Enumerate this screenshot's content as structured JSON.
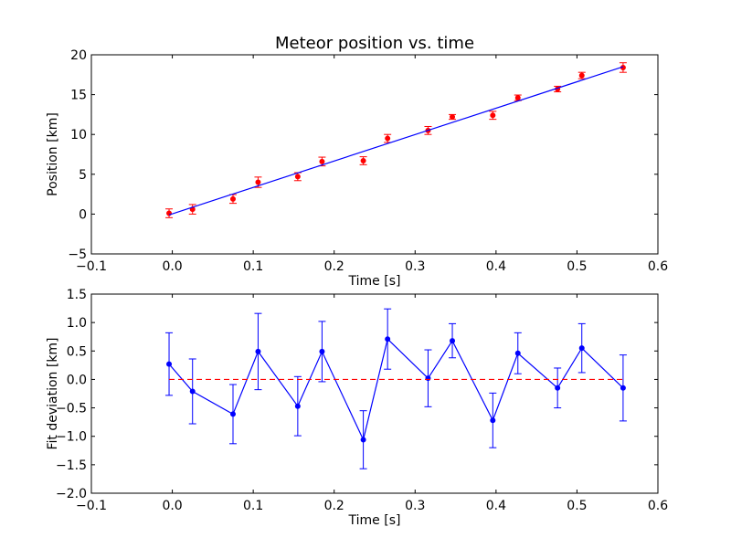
{
  "chart_data": [
    {
      "type": "scatter",
      "title": "Meteor position vs. time",
      "xlabel": "Time [s]",
      "ylabel": "Position [km]",
      "xlim": [
        -0.1,
        0.6
      ],
      "ylim": [
        -5,
        20
      ],
      "xticks": [
        "−0.1",
        "0.0",
        "0.1",
        "0.2",
        "0.3",
        "0.4",
        "0.5",
        "0.6"
      ],
      "yticks": [
        "−5",
        "0",
        "5",
        "10",
        "15",
        "20"
      ],
      "grid": false,
      "series": [
        {
          "style": "points-with-errorbars",
          "color": "#ff0000",
          "x": [
            -0.004,
            0.025,
            0.075,
            0.106,
            0.155,
            0.185,
            0.236,
            0.266,
            0.316,
            0.346,
            0.396,
            0.427,
            0.476,
            0.506,
            0.557
          ],
          "y": [
            0.1,
            0.6,
            1.9,
            4.0,
            4.7,
            6.6,
            6.7,
            9.5,
            10.5,
            12.2,
            12.4,
            14.6,
            15.7,
            17.4,
            18.4
          ],
          "yerr": [
            0.55,
            0.6,
            0.55,
            0.65,
            0.5,
            0.55,
            0.5,
            0.5,
            0.5,
            0.3,
            0.5,
            0.35,
            0.35,
            0.4,
            0.6
          ]
        },
        {
          "style": "line",
          "color": "#0000ff",
          "x": [
            -0.004,
            0.557
          ],
          "y": [
            -0.1,
            18.5
          ]
        }
      ]
    },
    {
      "type": "line",
      "xlabel": "Time [s]",
      "ylabel": "Fit deviation [km]",
      "xlim": [
        -0.1,
        0.6
      ],
      "ylim": [
        -2.0,
        1.5
      ],
      "xticks": [
        "−0.1",
        "0.0",
        "0.1",
        "0.2",
        "0.3",
        "0.4",
        "0.5",
        "0.6"
      ],
      "yticks": [
        "−2.0",
        "−1.5",
        "−1.0",
        "−0.5",
        "0.0",
        "0.5",
        "1.0",
        "1.5"
      ],
      "grid": false,
      "series": [
        {
          "style": "line-points-with-errorbars",
          "color": "#0000ff",
          "x": [
            -0.004,
            0.025,
            0.075,
            0.106,
            0.155,
            0.185,
            0.236,
            0.266,
            0.316,
            0.346,
            0.396,
            0.427,
            0.476,
            0.506,
            0.557
          ],
          "y": [
            0.27,
            -0.21,
            -0.61,
            0.49,
            -0.47,
            0.49,
            -1.06,
            0.71,
            0.02,
            0.68,
            -0.72,
            0.46,
            -0.15,
            0.55,
            -0.15
          ],
          "yerr": [
            0.55,
            0.57,
            0.52,
            0.67,
            0.52,
            0.53,
            0.51,
            0.53,
            0.5,
            0.3,
            0.48,
            0.36,
            0.35,
            0.43,
            0.58
          ]
        },
        {
          "style": "dashed-line",
          "color": "#ff0000",
          "x": [
            -0.004,
            0.557
          ],
          "y": [
            0.0,
            0.0
          ]
        }
      ]
    }
  ]
}
